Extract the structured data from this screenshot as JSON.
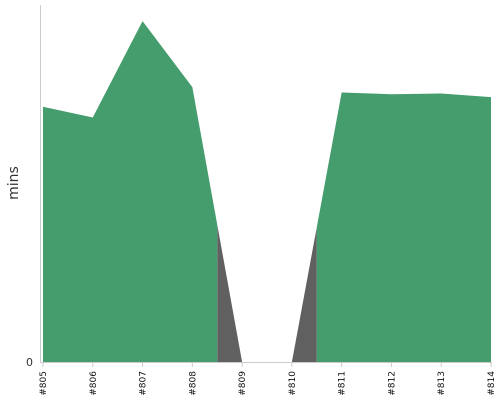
{
  "chart_data": {
    "type": "area",
    "title": "",
    "xlabel": "",
    "ylabel": "mins",
    "categories": [
      "#805",
      "#806",
      "#807",
      "#808",
      "#809",
      "#810",
      "#811",
      "#812",
      "#813",
      "#814"
    ],
    "y_ticks": [
      "0"
    ],
    "ylim": [
      0,
      100
    ],
    "grid": false,
    "legend": "none",
    "series": [
      {
        "values": [
          71.5,
          68.5,
          95.5,
          77,
          0,
          0,
          75.5,
          75,
          75.2,
          74.2
        ],
        "color": "#459d6e",
        "gap_color": "#606060"
      }
    ]
  }
}
